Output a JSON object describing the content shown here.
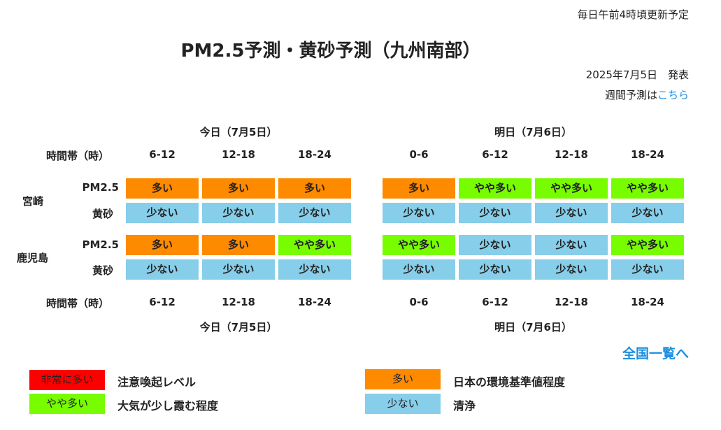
{
  "update_note": "毎日午前4時頃更新予定",
  "title": "PM2.5予測・黄砂予測（九州南部）",
  "issued": "2025年7月5日　発表",
  "weekly": {
    "prefix": "週間予測は",
    "link": "こちら"
  },
  "time_caption": "時間帯（時）",
  "today": {
    "label": "今日（7月5日）",
    "slots": [
      "6-12",
      "12-18",
      "18-24"
    ]
  },
  "tomorrow": {
    "label": "明日（7月6日）",
    "slots": [
      "0-6",
      "6-12",
      "12-18",
      "18-24"
    ]
  },
  "regions": [
    {
      "name": "宮崎",
      "rows": [
        {
          "label": "PM2.5",
          "today": [
            "多い",
            "多い",
            "多い"
          ],
          "tomorrow": [
            "多い",
            "やや多い",
            "やや多い",
            "やや多い"
          ]
        },
        {
          "label": "黄砂",
          "today": [
            "少ない",
            "少ない",
            "少ない"
          ],
          "tomorrow": [
            "少ない",
            "少ない",
            "少ない",
            "少ない"
          ]
        }
      ]
    },
    {
      "name": "鹿児島",
      "rows": [
        {
          "label": "PM2.5",
          "today": [
            "多い",
            "多い",
            "やや多い"
          ],
          "tomorrow": [
            "やや多い",
            "少ない",
            "少ない",
            "やや多い"
          ]
        },
        {
          "label": "黄砂",
          "today": [
            "少ない",
            "少ない",
            "少ない"
          ],
          "tomorrow": [
            "少ない",
            "少ない",
            "少ない",
            "少ない"
          ]
        }
      ]
    }
  ],
  "national_link": "全国一覧へ",
  "legend": [
    {
      "level": "非常に多い",
      "desc": "注意喚起レベル",
      "color": "#ff0000"
    },
    {
      "level": "多い",
      "desc": "日本の環境基準値程度",
      "color": "#fe8a00"
    },
    {
      "level": "やや多い",
      "desc": "大気が少し霞む程度",
      "color": "#78fc00"
    },
    {
      "level": "少ない",
      "desc": "清浄",
      "color": "#86ceea"
    }
  ]
}
